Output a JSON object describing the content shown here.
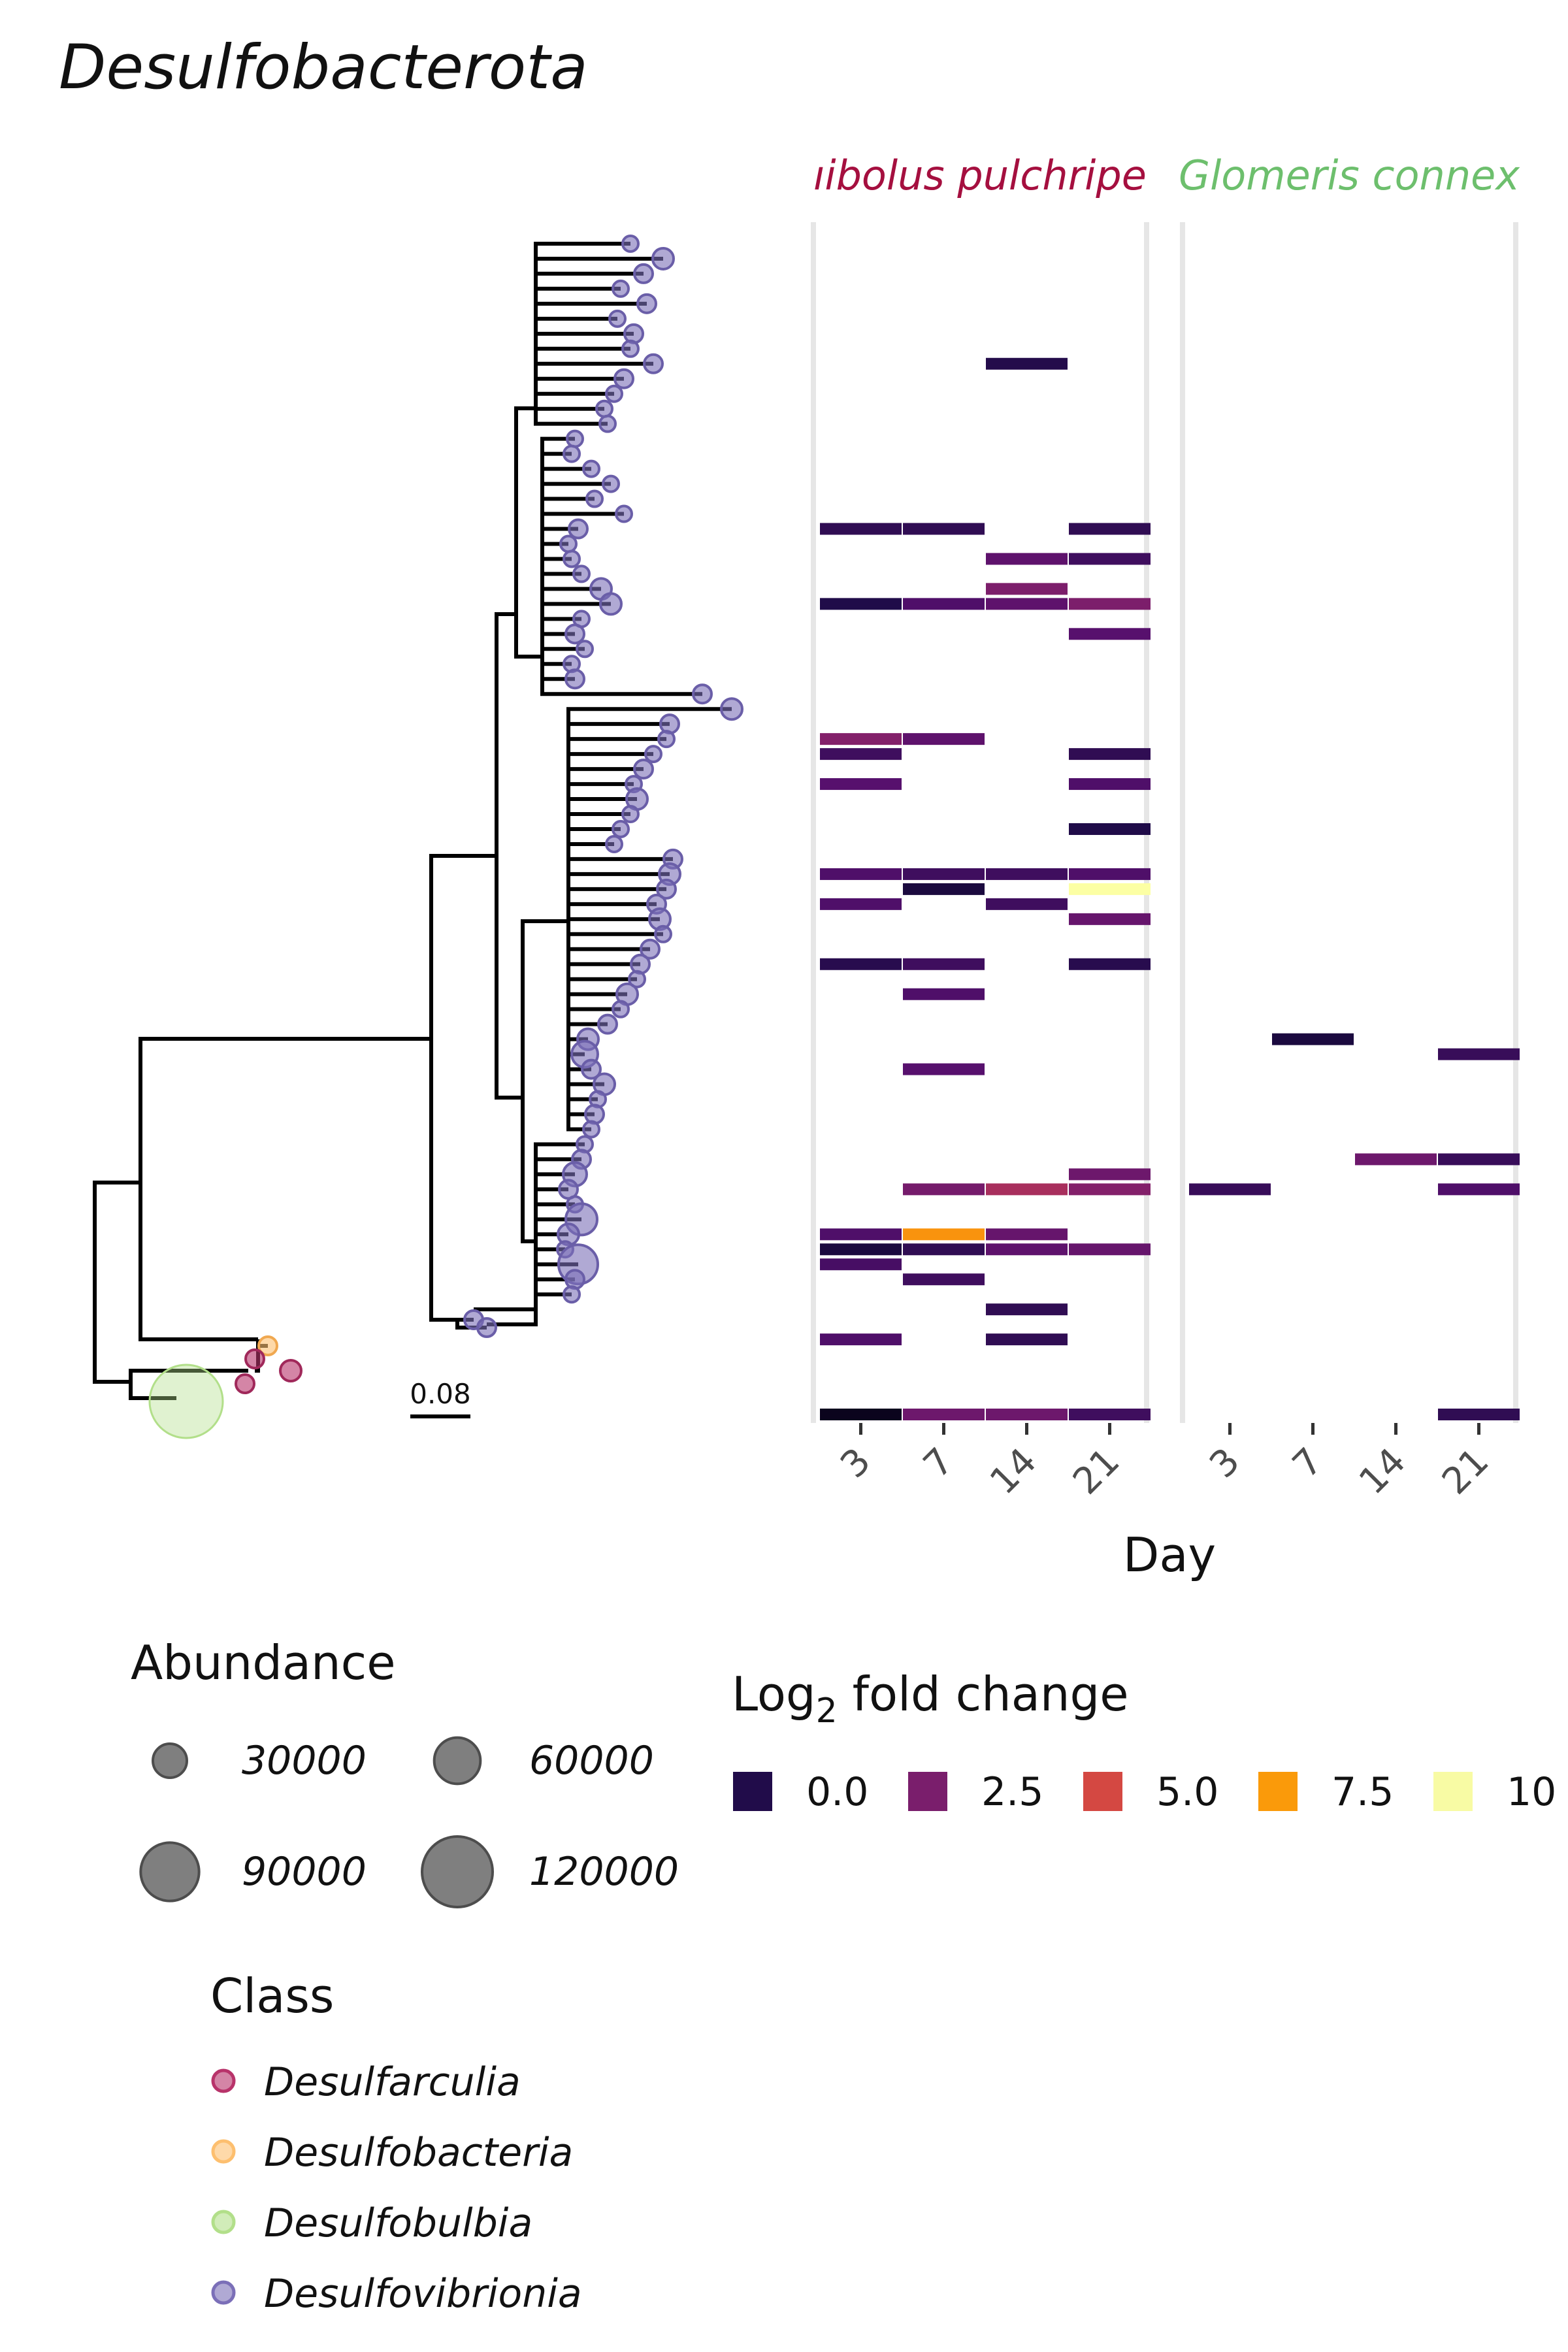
{
  "title": "Desulfobacterota",
  "scale_bar_label": "0.08",
  "chart_data": {
    "type": "heatmap",
    "title": "Desulfobacterota",
    "xlabel": "Day",
    "x_categories": [
      "3",
      "7",
      "14",
      "21"
    ],
    "facets": [
      {
        "name": "Glomeris pulchripes",
        "shown_label": "ıibolus pulchripe",
        "color": "#a50f3f"
      },
      {
        "name": "Glomeris connexa",
        "shown_label": "Glomeris connex",
        "color": "#6dbf6d"
      }
    ],
    "color_scale": {
      "name": "Log2 fold change",
      "palette": "inferno",
      "min": 0,
      "max": 10,
      "breaks": [
        "0.0",
        "2.5",
        "5.0",
        "7.5",
        "10"
      ]
    },
    "tip_count": 80,
    "cells": [
      {
        "facet": 0,
        "tip": 10,
        "day": "14",
        "value": 0.5
      },
      {
        "facet": 0,
        "tip": 21,
        "day": "3",
        "value": 0.8
      },
      {
        "facet": 0,
        "tip": 21,
        "day": "7",
        "value": 0.8
      },
      {
        "facet": 0,
        "tip": 21,
        "day": "21",
        "value": 0.8
      },
      {
        "facet": 0,
        "tip": 23,
        "day": "14",
        "value": 2.0
      },
      {
        "facet": 0,
        "tip": 23,
        "day": "21",
        "value": 1.2
      },
      {
        "facet": 0,
        "tip": 25,
        "day": "14",
        "value": 2.8
      },
      {
        "facet": 0,
        "tip": 26,
        "day": "3",
        "value": 0.4
      },
      {
        "facet": 0,
        "tip": 26,
        "day": "7",
        "value": 1.6
      },
      {
        "facet": 0,
        "tip": 26,
        "day": "14",
        "value": 2.0
      },
      {
        "facet": 0,
        "tip": 26,
        "day": "21",
        "value": 2.8
      },
      {
        "facet": 0,
        "tip": 28,
        "day": "21",
        "value": 1.8
      },
      {
        "facet": 0,
        "tip": 35,
        "day": "3",
        "value": 3.0
      },
      {
        "facet": 0,
        "tip": 35,
        "day": "7",
        "value": 2.0
      },
      {
        "facet": 0,
        "tip": 36,
        "day": "3",
        "value": 1.2
      },
      {
        "facet": 0,
        "tip": 36,
        "day": "21",
        "value": 0.8
      },
      {
        "facet": 0,
        "tip": 38,
        "day": "3",
        "value": 1.8
      },
      {
        "facet": 0,
        "tip": 38,
        "day": "21",
        "value": 1.6
      },
      {
        "facet": 0,
        "tip": 41,
        "day": "21",
        "value": 0.4
      },
      {
        "facet": 0,
        "tip": 44,
        "day": "3",
        "value": 1.6
      },
      {
        "facet": 0,
        "tip": 44,
        "day": "7",
        "value": 1.2
      },
      {
        "facet": 0,
        "tip": 44,
        "day": "14",
        "value": 1.2
      },
      {
        "facet": 0,
        "tip": 44,
        "day": "21",
        "value": 1.6
      },
      {
        "facet": 0,
        "tip": 45,
        "day": "7",
        "value": 0.2
      },
      {
        "facet": 0,
        "tip": 45,
        "day": "21",
        "value": 10.0
      },
      {
        "facet": 0,
        "tip": 46,
        "day": "3",
        "value": 1.6
      },
      {
        "facet": 0,
        "tip": 46,
        "day": "14",
        "value": 1.2
      },
      {
        "facet": 0,
        "tip": 47,
        "day": "21",
        "value": 2.2
      },
      {
        "facet": 0,
        "tip": 50,
        "day": "3",
        "value": 0.6
      },
      {
        "facet": 0,
        "tip": 50,
        "day": "7",
        "value": 1.2
      },
      {
        "facet": 0,
        "tip": 50,
        "day": "21",
        "value": 0.6
      },
      {
        "facet": 0,
        "tip": 52,
        "day": "7",
        "value": 1.6
      },
      {
        "facet": 0,
        "tip": 57,
        "day": "7",
        "value": 1.8
      },
      {
        "facet": 0,
        "tip": 64,
        "day": "21",
        "value": 2.4
      },
      {
        "facet": 0,
        "tip": 65,
        "day": "7",
        "value": 2.6
      },
      {
        "facet": 0,
        "tip": 65,
        "day": "14",
        "value": 4.0
      },
      {
        "facet": 0,
        "tip": 65,
        "day": "21",
        "value": 3.0
      },
      {
        "facet": 0,
        "tip": 68,
        "day": "3",
        "value": 1.6
      },
      {
        "facet": 0,
        "tip": 68,
        "day": "7",
        "value": 7.4
      },
      {
        "facet": 0,
        "tip": 68,
        "day": "14",
        "value": 2.2
      },
      {
        "facet": 0,
        "tip": 69,
        "day": "3",
        "value": 0.2
      },
      {
        "facet": 0,
        "tip": 69,
        "day": "7",
        "value": 0.8
      },
      {
        "facet": 0,
        "tip": 69,
        "day": "14",
        "value": 2.0
      },
      {
        "facet": 0,
        "tip": 69,
        "day": "21",
        "value": 2.2
      },
      {
        "facet": 0,
        "tip": 70,
        "day": "3",
        "value": 1.4
      },
      {
        "facet": 0,
        "tip": 71,
        "day": "7",
        "value": 1.2
      },
      {
        "facet": 0,
        "tip": 73,
        "day": "14",
        "value": 0.8
      },
      {
        "facet": 0,
        "tip": 75,
        "day": "3",
        "value": 1.6
      },
      {
        "facet": 0,
        "tip": 75,
        "day": "14",
        "value": 0.8
      },
      {
        "facet": 0,
        "tip": 80,
        "day": "3",
        "value": -0.5
      },
      {
        "facet": 0,
        "tip": 80,
        "day": "7",
        "value": 2.4
      },
      {
        "facet": 0,
        "tip": 80,
        "day": "14",
        "value": 2.4
      },
      {
        "facet": 0,
        "tip": 80,
        "day": "21",
        "value": 1.2
      },
      {
        "facet": 1,
        "tip": 55,
        "day": "7",
        "value": 0.2
      },
      {
        "facet": 1,
        "tip": 56,
        "day": "21",
        "value": 1.0
      },
      {
        "facet": 1,
        "tip": 63,
        "day": "14",
        "value": 2.4
      },
      {
        "facet": 1,
        "tip": 63,
        "day": "21",
        "value": 1.0
      },
      {
        "facet": 1,
        "tip": 65,
        "day": "3",
        "value": 1.0
      },
      {
        "facet": 1,
        "tip": 65,
        "day": "21",
        "value": 1.6
      },
      {
        "facet": 1,
        "tip": 80,
        "day": "21",
        "value": 0.8
      }
    ]
  },
  "legend_abundance": {
    "title": "Abundance",
    "items": [
      {
        "label": "30000",
        "value": 30000
      },
      {
        "label": "60000",
        "value": 60000
      },
      {
        "label": "90000",
        "value": 90000
      },
      {
        "label": "120000",
        "value": 120000
      }
    ]
  },
  "legend_fold": {
    "title_main": "Log",
    "title_sub": "2",
    "title_rest": " fold change",
    "items": [
      {
        "label": "0.0",
        "color": "#210c4a"
      },
      {
        "label": "2.5",
        "color": "#7a1e6c"
      },
      {
        "label": "5.0",
        "color": "#d44842"
      },
      {
        "label": "7.5",
        "color": "#fa9a0a"
      },
      {
        "label": "10",
        "color": "#f8fba4"
      }
    ]
  },
  "legend_class": {
    "title": "Class",
    "items": [
      {
        "label": "Desulfarculia",
        "color": "#b8336a"
      },
      {
        "label": "Desulfobacteria",
        "color": "#fdbf6f"
      },
      {
        "label": "Desulfobulbia",
        "color": "#b2df8a"
      },
      {
        "label": "Desulfovibrionia",
        "color": "#7b6fb8"
      }
    ]
  }
}
